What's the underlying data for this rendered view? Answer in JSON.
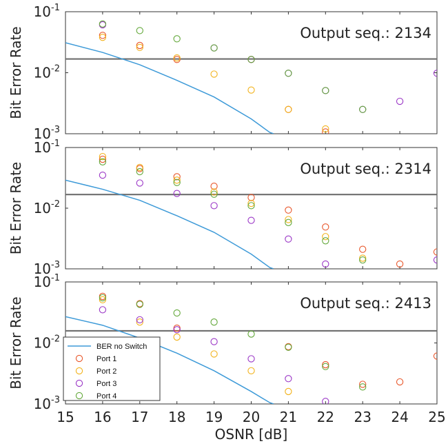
{
  "chart_data": [
    {
      "type": "scatter",
      "annotation": "Output seq.: 2134",
      "ylabel": "Bit Error Rate",
      "xlim": [
        15,
        25
      ],
      "ylim": [
        0.001,
        0.1
      ],
      "yscale": "log",
      "yticks": [
        {
          "base": "10",
          "exp": "-3",
          "value": 0.001
        },
        {
          "base": "10",
          "exp": "-2",
          "value": 0.01
        },
        {
          "base": "10",
          "exp": "-1",
          "value": 0.1
        }
      ],
      "threshold": 0.0168,
      "reference_line": {
        "name": "BER no Switch",
        "x": [
          15,
          16,
          17,
          18,
          19,
          20,
          20.5,
          20.6
        ],
        "y": [
          0.031,
          0.0215,
          0.0135,
          0.0075,
          0.004,
          0.00175,
          0.00105,
          0.001
        ]
      },
      "series": [
        {
          "name": "Port 1",
          "color": "#e8562a",
          "x": [
            16,
            17,
            18,
            20,
            21,
            22
          ],
          "y": [
            0.041,
            0.028,
            0.0165,
            0.0165,
            0.0025,
            0.00107
          ]
        },
        {
          "name": "Port 2",
          "color": "#f2b21b",
          "x": [
            16,
            17,
            18,
            19,
            20,
            21,
            22
          ],
          "y": [
            0.038,
            0.026,
            0.0175,
            0.0095,
            0.0052,
            0.0025,
            0.0012
          ]
        },
        {
          "name": "Port 3",
          "color": "#9a35c6",
          "x": [
            16,
            19,
            20,
            21,
            22,
            23,
            24,
            25
          ],
          "y": [
            0.061,
            0.0255,
            0.0165,
            0.0098,
            0.0051,
            0.0025,
            0.0034,
            0.0098
          ]
        },
        {
          "name": "Port 4",
          "color": "#63a83a",
          "x": [
            16,
            17,
            18,
            19,
            20,
            21,
            22,
            23
          ],
          "y": [
            0.063,
            0.049,
            0.036,
            0.0255,
            0.0165,
            0.0098,
            0.0051,
            0.0025
          ]
        }
      ]
    },
    {
      "type": "scatter",
      "annotation": "Output seq.: 2314",
      "ylabel": "Bit Error Rate",
      "xlim": [
        15,
        25
      ],
      "ylim": [
        0.001,
        0.1
      ],
      "yscale": "log",
      "yticks": [
        {
          "base": "10",
          "exp": "-3",
          "value": 0.001
        },
        {
          "base": "10",
          "exp": "-2",
          "value": 0.01
        },
        {
          "base": "10",
          "exp": "-1",
          "value": 0.1
        }
      ],
      "threshold": 0.0168,
      "reference_line": {
        "name": "BER no Switch",
        "x": [
          15,
          16,
          17,
          18,
          19,
          20,
          20.5,
          20.6
        ],
        "y": [
          0.029,
          0.0205,
          0.0135,
          0.0075,
          0.004,
          0.00175,
          0.00105,
          0.001
        ]
      },
      "series": [
        {
          "name": "Port 1",
          "color": "#e8562a",
          "x": [
            16,
            17,
            18,
            19,
            20,
            21,
            22,
            23,
            24,
            25
          ],
          "y": [
            0.064,
            0.045,
            0.033,
            0.023,
            0.015,
            0.0093,
            0.0049,
            0.0021,
            0.0012,
            0.0019
          ]
        },
        {
          "name": "Port 2",
          "color": "#f2b21b",
          "x": [
            16,
            17,
            18,
            19,
            20,
            21,
            22,
            23
          ],
          "y": [
            0.071,
            0.047,
            0.029,
            0.0185,
            0.012,
            0.0065,
            0.0034,
            0.0015
          ]
        },
        {
          "name": "Port 3",
          "color": "#9a35c6",
          "x": [
            16,
            17,
            18,
            19,
            20,
            21,
            22,
            25
          ],
          "y": [
            0.035,
            0.026,
            0.0175,
            0.011,
            0.0063,
            0.0031,
            0.0012,
            0.0014
          ]
        },
        {
          "name": "Port 4",
          "color": "#63a83a",
          "x": [
            16,
            17,
            18,
            19,
            20,
            21,
            22,
            23
          ],
          "y": [
            0.058,
            0.04,
            0.0265,
            0.017,
            0.011,
            0.0058,
            0.0029,
            0.0014
          ]
        }
      ]
    },
    {
      "type": "scatter",
      "annotation": "Output seq.: 2413",
      "ylabel": "Bit Error Rate",
      "xlabel": "OSNR  [dB]",
      "xlim": [
        15,
        25
      ],
      "ylim": [
        0.001,
        0.1
      ],
      "yscale": "log",
      "xticks": [
        15,
        16,
        17,
        18,
        19,
        20,
        21,
        22,
        23,
        24,
        25
      ],
      "yticks": [
        {
          "base": "10",
          "exp": "-3",
          "value": 0.001
        },
        {
          "base": "10",
          "exp": "-2",
          "value": 0.01
        },
        {
          "base": "10",
          "exp": "-1",
          "value": 0.1
        }
      ],
      "threshold": 0.0158,
      "reference_line": {
        "name": "BER no Switch",
        "x": [
          15,
          16,
          17,
          18,
          19,
          20,
          20.5,
          20.6
        ],
        "y": [
          0.027,
          0.0195,
          0.012,
          0.0068,
          0.0035,
          0.0016,
          0.00105,
          0.001
        ]
      },
      "series": [
        {
          "name": "Port 1",
          "color": "#e8562a",
          "x": [
            16,
            17,
            18,
            21,
            22,
            23,
            24,
            25
          ],
          "y": [
            0.058,
            0.044,
            0.0175,
            0.0087,
            0.0044,
            0.0021,
            0.0023,
            0.0061
          ]
        },
        {
          "name": "Port 2",
          "color": "#f2b21b",
          "x": [
            16,
            17,
            18,
            19,
            20,
            21
          ],
          "y": [
            0.051,
            0.022,
            0.0125,
            0.0066,
            0.0035,
            0.0016
          ]
        },
        {
          "name": "Port 3",
          "color": "#9a35c6",
          "x": [
            16,
            17,
            18,
            19,
            20,
            21,
            22
          ],
          "y": [
            0.035,
            0.024,
            0.0165,
            0.0105,
            0.0055,
            0.0026,
            0.0011
          ]
        },
        {
          "name": "Port 4",
          "color": "#63a83a",
          "x": [
            16,
            17,
            18,
            19,
            20,
            21,
            22,
            23
          ],
          "y": [
            0.055,
            0.043,
            0.031,
            0.022,
            0.014,
            0.0085,
            0.0041,
            0.0019
          ]
        }
      ],
      "legend": {
        "placement": "bottom-left",
        "entries": [
          "BER no Switch",
          "Port 1",
          "Port 2",
          "Port 3",
          "Port 4"
        ]
      }
    }
  ],
  "colors": {
    "reference_line": "#3d9ad8",
    "threshold_line": "#6e6e6e",
    "axis": "#333333"
  }
}
